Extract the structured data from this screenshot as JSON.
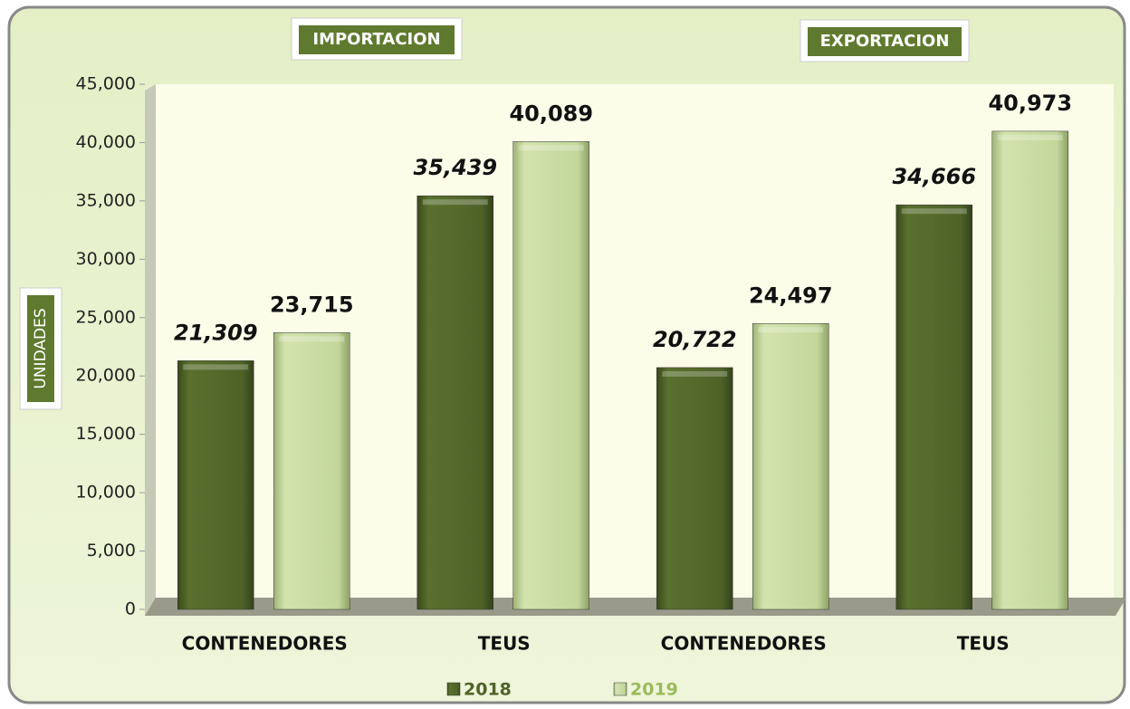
{
  "chart_data": {
    "type": "bar",
    "annotations": [
      "IMPORTACION",
      "EXPORTACION"
    ],
    "y_label": "UNIDADES",
    "categories": [
      "CONTENEDORES",
      "TEUS",
      "CONTENEDORES",
      "TEUS"
    ],
    "series": [
      {
        "name": "2018",
        "color": "#4f6228",
        "values": [
          21309,
          35439,
          20722,
          34666
        ],
        "value_labels": [
          "21,309",
          "35,439",
          "20,722",
          "34,666"
        ]
      },
      {
        "name": "2019",
        "color": "#c3d69b",
        "values": [
          23715,
          40089,
          24497,
          40973
        ],
        "value_labels": [
          "23,715",
          "40,089",
          "24,497",
          "40,973"
        ]
      }
    ],
    "ylim": [
      0,
      45000
    ],
    "yticks": [
      {
        "value": 0,
        "label": "0"
      },
      {
        "value": 5000,
        "label": "5,000"
      },
      {
        "value": 10000,
        "label": "10,000"
      },
      {
        "value": 15000,
        "label": "15,000"
      },
      {
        "value": 20000,
        "label": "20,000"
      },
      {
        "value": 25000,
        "label": "25,000"
      },
      {
        "value": 30000,
        "label": "30,000"
      },
      {
        "value": 35000,
        "label": "35,000"
      },
      {
        "value": 40000,
        "label": "40,000"
      },
      {
        "value": 45000,
        "label": "45,000"
      }
    ],
    "grid": false,
    "legend": "bottom"
  }
}
